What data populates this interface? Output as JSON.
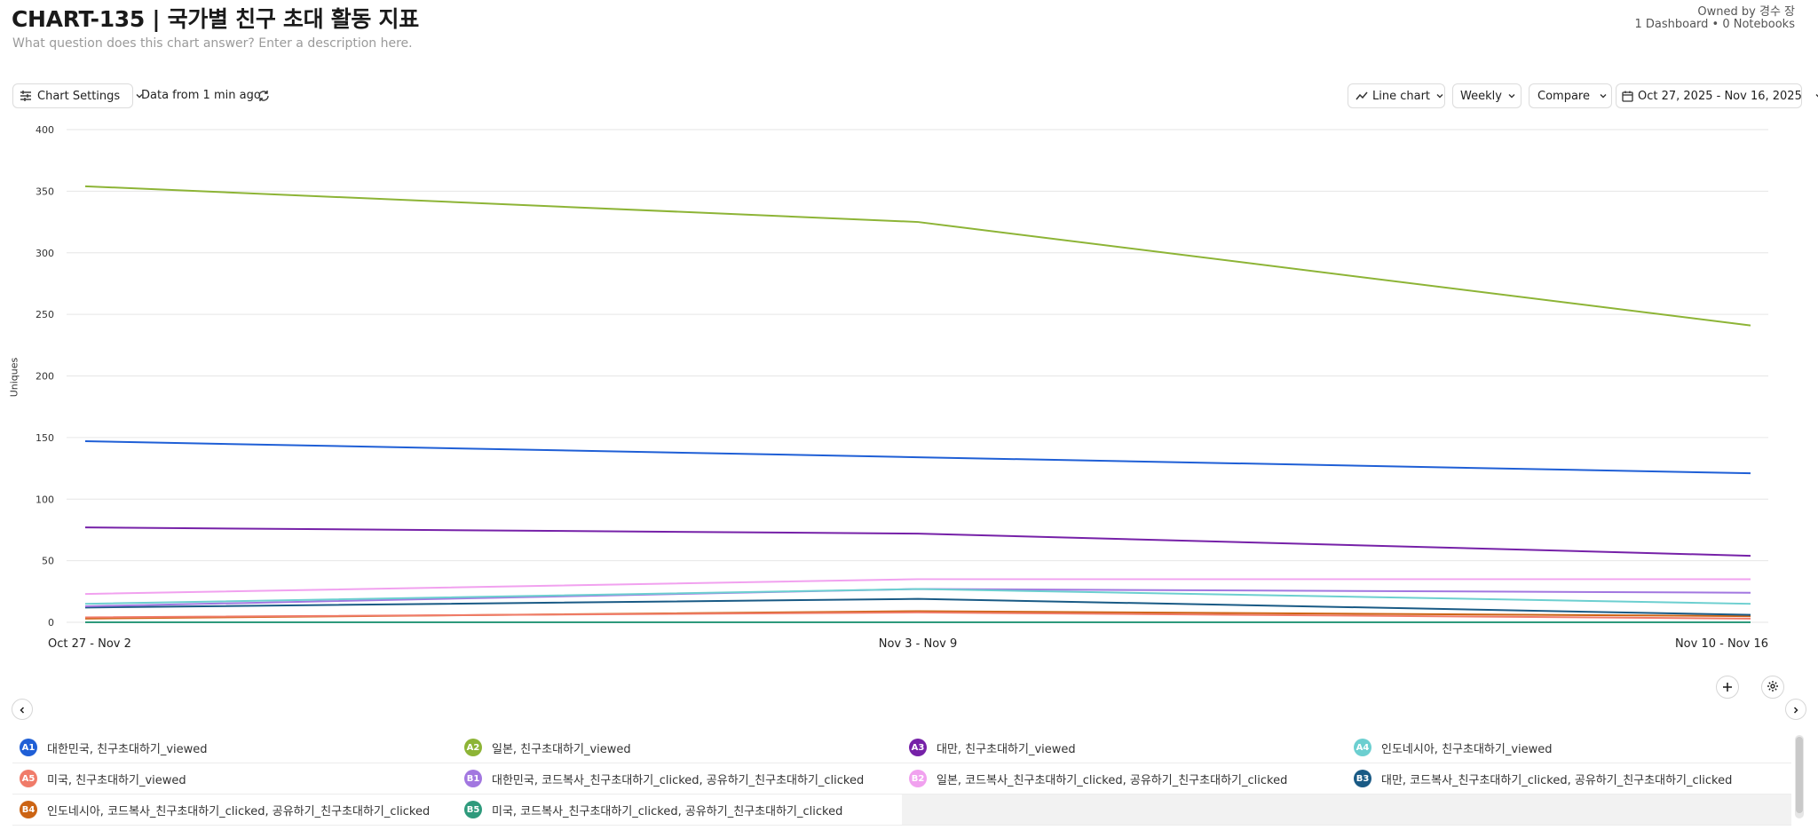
{
  "header": {
    "title": "CHART-135 | 국가별 친구 초대 활동 지표",
    "subtitle": "What question does this chart answer? Enter a description here.",
    "owner": "Owned by 경수 장",
    "owner_sub": "1 Dashboard • 0 Notebooks"
  },
  "toolbar": {
    "chart_settings": "Chart Settings",
    "data_freshness": "Data from 1 min ago",
    "chart_type": "Line chart",
    "interval": "Weekly",
    "compare": "Compare",
    "date_range": "Oct 27, 2025 - Nov 16, 2025"
  },
  "icons": {
    "settings": "sliders-icon",
    "refresh": "refresh-icon",
    "line": "line-chart-icon",
    "calendar": "calendar-icon",
    "chevron": "chevron-down-icon",
    "add": "plus-icon",
    "gear": "gear-icon",
    "prev": "chevron-left-icon",
    "next": "chevron-right-icon"
  },
  "chart_data": {
    "type": "line",
    "x": [
      "Oct 27 - Nov 2",
      "Nov 3 - Nov 9",
      "Nov 10 - Nov 16"
    ],
    "ylabel": "Uniques",
    "ylim": [
      0,
      400
    ],
    "yticks": [
      0,
      50,
      100,
      150,
      200,
      250,
      300,
      350,
      400
    ],
    "grid": true,
    "series": [
      {
        "id": "A1",
        "name": "대한민국, 친구초대하기_viewed",
        "color": "#1f5fd6",
        "values": [
          147,
          134,
          121
        ]
      },
      {
        "id": "A2",
        "name": "일본, 친구초대하기_viewed",
        "color": "#8db436",
        "values": [
          354,
          325,
          241
        ]
      },
      {
        "id": "A3",
        "name": "대만, 친구초대하기_viewed",
        "color": "#7621a8",
        "values": [
          77,
          72,
          54
        ]
      },
      {
        "id": "A4",
        "name": "인도네시아, 친구초대하기_viewed",
        "color": "#6ccfd0",
        "values": [
          15,
          27,
          15
        ]
      },
      {
        "id": "A5",
        "name": "미국, 친구초대하기_viewed",
        "color": "#f07b69",
        "values": [
          4,
          8,
          3
        ]
      },
      {
        "id": "B1",
        "name": "대한민국, 코드복사_친구초대하기_clicked, 공유하기_친구초대하기_clicked",
        "color": "#a277e0",
        "values": [
          13,
          27,
          24
        ]
      },
      {
        "id": "B2",
        "name": "일본, 코드복사_친구초대하기_clicked, 공유하기_친구초대하기_clicked",
        "color": "#f1a1ef",
        "values": [
          23,
          35,
          35
        ]
      },
      {
        "id": "B3",
        "name": "대만, 코드복사_친구초대하기_clicked, 공유하기_친구초대하기_clicked",
        "color": "#195a85",
        "values": [
          12,
          19,
          6
        ]
      },
      {
        "id": "B4",
        "name": "인도네시아, 코드복사_친구초대하기_clicked, 공유하기_친구초대하기_clicked",
        "color": "#cc6414",
        "values": [
          3,
          9,
          5
        ]
      },
      {
        "id": "B5",
        "name": "미국, 코드복사_친구초대하기_clicked, 공유하기_친구초대하기_clicked",
        "color": "#2e9a7c",
        "values": [
          0,
          0,
          0
        ]
      }
    ]
  }
}
